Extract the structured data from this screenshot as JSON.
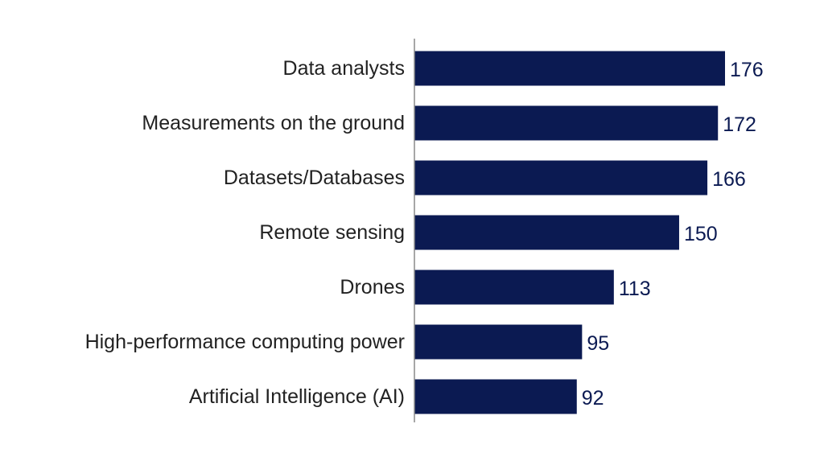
{
  "chart_data": {
    "type": "bar",
    "orientation": "horizontal",
    "categories": [
      "Data analysts",
      "Measurements on the ground",
      "Datasets/Databases",
      "Remote sensing",
      "Drones",
      "High-performance computing power",
      "Artificial Intelligence (AI)"
    ],
    "values": [
      176,
      172,
      166,
      150,
      113,
      95,
      92
    ],
    "title": "",
    "xlabel": "",
    "ylabel": "",
    "xlim": [
      0,
      176
    ],
    "grid": false,
    "legend": "none",
    "bar_color": "#0b1a52",
    "label_color": "#0b1a52",
    "text_color": "#222222"
  }
}
